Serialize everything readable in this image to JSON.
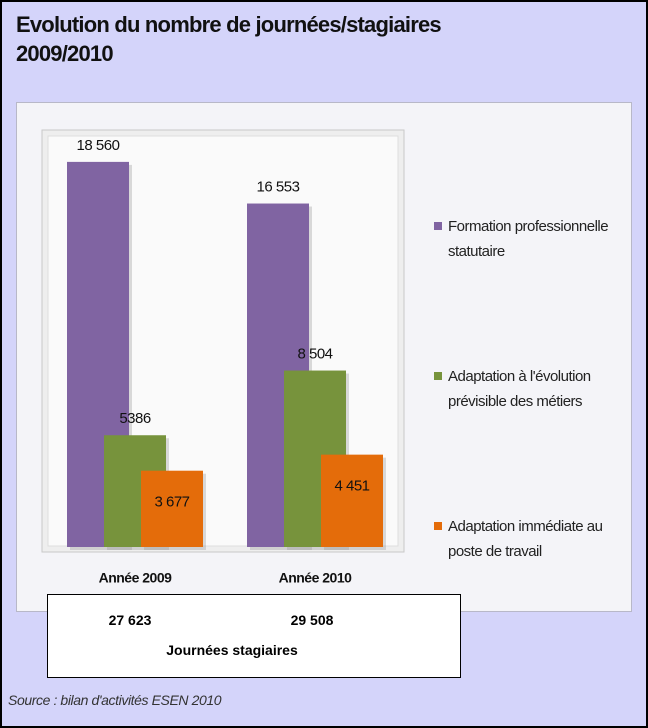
{
  "chart_data": {
    "type": "bar",
    "title": "Evolution du nombre de journées/stagiaires 2009/2010",
    "categories": [
      "Année 2009",
      "Année 2010"
    ],
    "series": [
      {
        "name": "Formation professionnelle statutaire",
        "color": "#8064a2",
        "values": [
          18560,
          16553
        ],
        "value_labels": [
          "18 560",
          "16 553"
        ]
      },
      {
        "name": "Adaptation à l'évolution prévisible des métiers",
        "color": "#77933c",
        "values": [
          5386,
          8504
        ],
        "value_labels": [
          "5386",
          "8 504"
        ]
      },
      {
        "name": "Adaptation immédiate au poste de travail",
        "color": "#e46c0a",
        "values": [
          3677,
          4451
        ],
        "value_labels": [
          "3 677",
          "4 451"
        ]
      }
    ],
    "ylim": [
      0,
      20000
    ],
    "totals": [
      "27 623",
      "29 508"
    ],
    "totals_label": "Journées stagiaires",
    "source": "Source : bilan d'activités ESEN 2010"
  }
}
